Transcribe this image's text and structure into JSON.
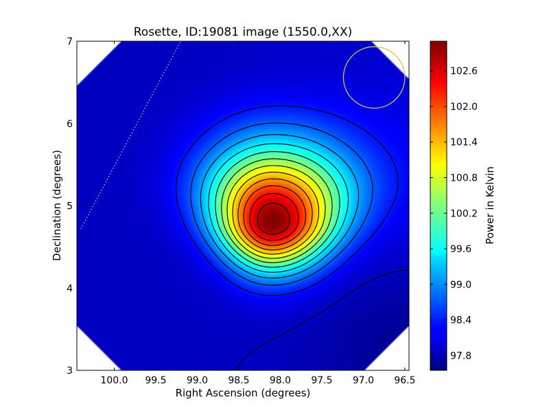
{
  "chart_data": {
    "type": "heatmap",
    "title": "Rosette, ID:19081 image (1550.0,XX)",
    "xlabel": "Right Ascension (degrees)",
    "ylabel": "Declination (degrees)",
    "xlim": [
      100.45,
      96.45
    ],
    "ylim": [
      3.0,
      7.0
    ],
    "x_ticks": [
      {
        "value": 100.0,
        "label": "100.0"
      },
      {
        "value": 99.5,
        "label": "99.5"
      },
      {
        "value": 99.0,
        "label": "99.0"
      },
      {
        "value": 98.5,
        "label": "98.5"
      },
      {
        "value": 98.0,
        "label": "98.0"
      },
      {
        "value": 97.5,
        "label": "97.5"
      },
      {
        "value": 97.0,
        "label": "97.0"
      },
      {
        "value": 96.5,
        "label": "96.5"
      }
    ],
    "y_ticks": [
      {
        "value": 3,
        "label": "3"
      },
      {
        "value": 4,
        "label": "4"
      },
      {
        "value": 5,
        "label": "5"
      },
      {
        "value": 6,
        "label": "6"
      },
      {
        "value": 7,
        "label": "7"
      }
    ],
    "grid": false,
    "colormap": "jet",
    "colorbar": {
      "label": "Power in Kelvin",
      "min": 97.55,
      "max": 103.1,
      "ticks": [
        {
          "value": 97.8,
          "label": "97.8"
        },
        {
          "value": 98.4,
          "label": "98.4"
        },
        {
          "value": 99.0,
          "label": "99.0"
        },
        {
          "value": 99.6,
          "label": "99.6"
        },
        {
          "value": 100.2,
          "label": "100.2"
        },
        {
          "value": 100.8,
          "label": "100.8"
        },
        {
          "value": 101.4,
          "label": "101.4"
        },
        {
          "value": 102.0,
          "label": "102.0"
        },
        {
          "value": 102.6,
          "label": "102.6"
        }
      ]
    },
    "peak": {
      "ra": 98.1,
      "dec": 4.8,
      "value": 103.0
    },
    "background_value": 97.9,
    "contour_levels": [
      97.9,
      98.35,
      98.75,
      99.15,
      99.55,
      99.95,
      100.35,
      100.75,
      101.15,
      101.55,
      101.95,
      102.35,
      102.75
    ],
    "beam_circle": {
      "ra": 96.87,
      "dec": 6.56,
      "radius_deg": 0.37,
      "color": "#c8c850"
    },
    "galactic_plane_line": {
      "points": [
        [
          100.4,
          4.72
        ],
        [
          99.2,
          7.0
        ]
      ],
      "color": "#d0d0d0",
      "style": "dotted"
    }
  }
}
